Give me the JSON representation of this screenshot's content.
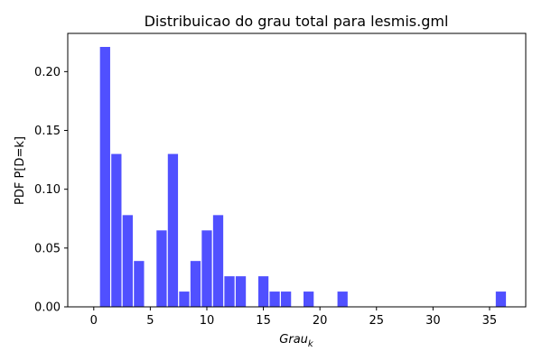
{
  "chart_data": {
    "type": "bar",
    "title": "Distribuicao do grau total para lesmis.gml",
    "xlabel": "Grau",
    "xlabel_subscript": "k",
    "ylabel": "PDF P[D=k]",
    "xlim": [
      -2.3,
      38.2
    ],
    "ylim": [
      0,
      0.2325
    ],
    "xticks": [
      0,
      5,
      10,
      15,
      20,
      25,
      30,
      35
    ],
    "yticks": [
      0.0,
      0.05,
      0.1,
      0.15,
      0.2
    ],
    "yticks_labels": [
      "0.00",
      "0.05",
      "0.10",
      "0.15",
      "0.20"
    ],
    "bar_color": "#5050ff",
    "bar_width": 0.9,
    "grid": false,
    "series": [
      {
        "x": [
          1,
          2,
          3,
          4,
          6,
          7,
          8,
          9,
          10,
          11,
          12,
          13,
          15,
          16,
          17,
          19,
          22,
          36
        ],
        "values": [
          0.221,
          0.13,
          0.078,
          0.039,
          0.065,
          0.13,
          0.013,
          0.039,
          0.065,
          0.078,
          0.026,
          0.026,
          0.026,
          0.013,
          0.013,
          0.013,
          0.013,
          0.013
        ]
      }
    ]
  }
}
